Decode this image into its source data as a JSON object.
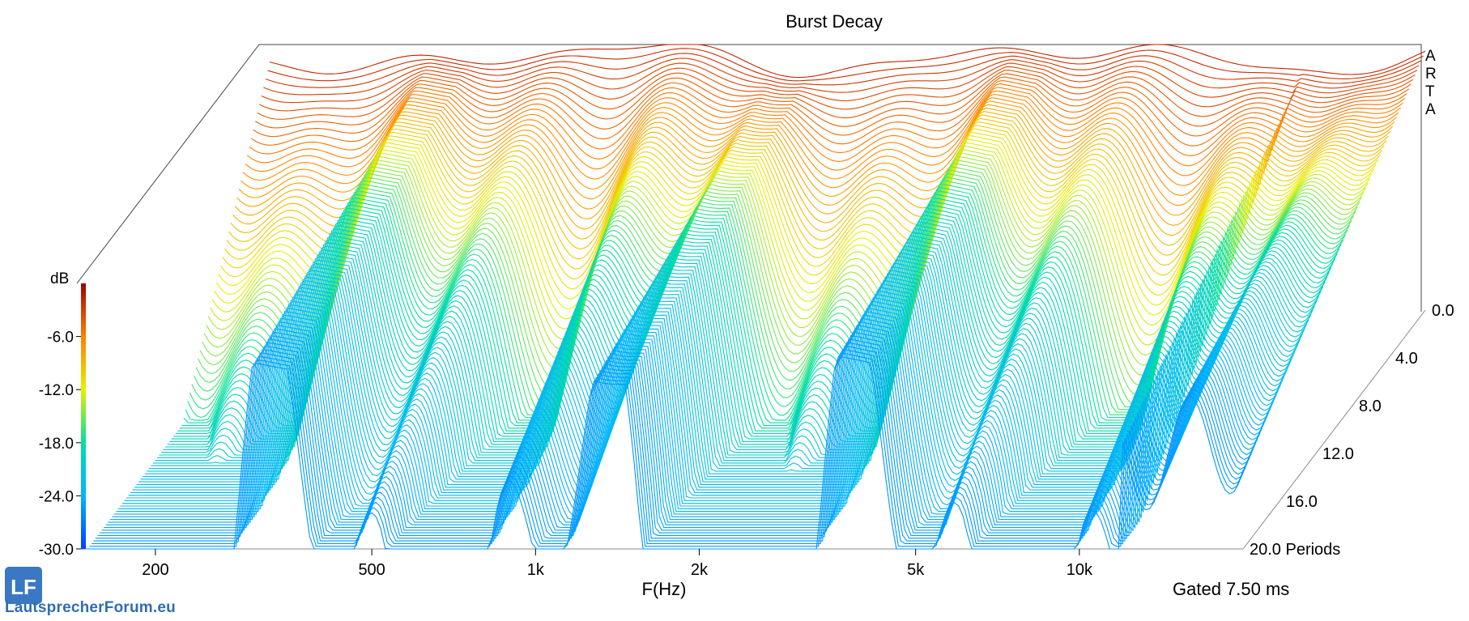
{
  "chart_data": {
    "type": "waterfall",
    "title": "Burst Decay",
    "xlabel": "F(Hz)",
    "x_scale": "log",
    "x_ticks": [
      "200",
      "500",
      "1k",
      "2k",
      "5k",
      "10k"
    ],
    "x_tick_values": [
      200,
      500,
      1000,
      2000,
      5000,
      10000
    ],
    "x_range": [
      150,
      20000
    ],
    "z_label": "dB",
    "z_ticks": [
      "-6.0",
      "-12.0",
      "-18.0",
      "-24.0",
      "-30.0"
    ],
    "z_range": [
      -30,
      0
    ],
    "y_axis_label": "Periods",
    "y_ticks": [
      "0.0",
      "4.0",
      "8.0",
      "12.0",
      "16.0",
      "20.0 Periods"
    ],
    "y_range": [
      0,
      20
    ],
    "colormap": [
      "#0000ff",
      "#00c8ff",
      "#00e6a0",
      "#ffff00",
      "#ff8000",
      "#c80000"
    ],
    "note": "Gated 7.50 ms",
    "brand": "ARTA"
  },
  "watermark": {
    "text": "LautsprecherForum.eu",
    "logo_letters": "LF"
  }
}
